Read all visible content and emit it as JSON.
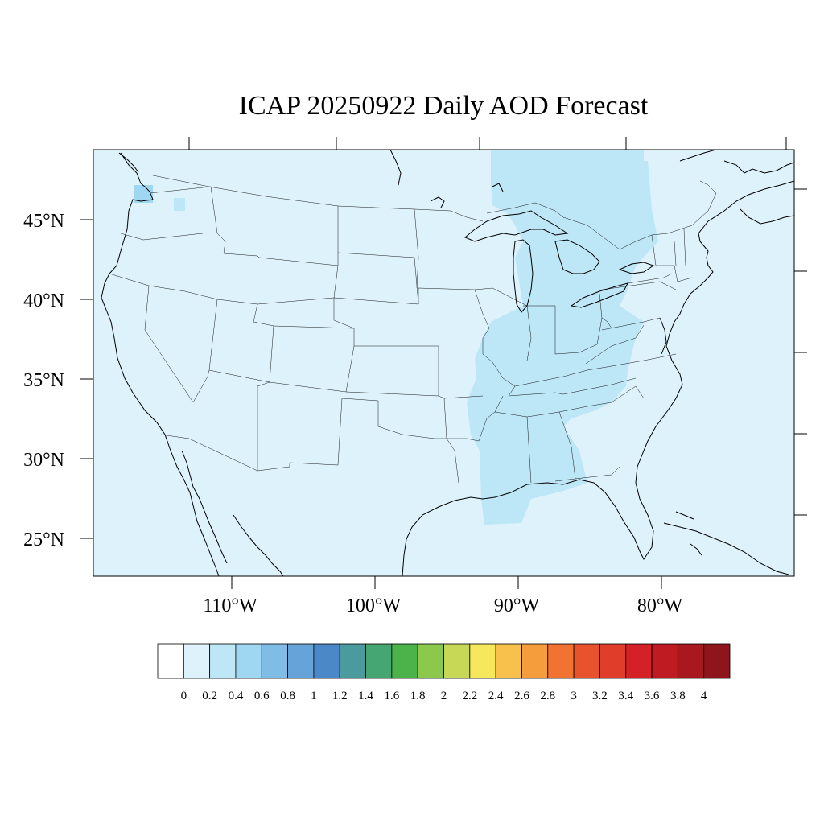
{
  "title": "ICAP 20250922 Daily AOD Forecast",
  "map": {
    "background_color": "#def2fb",
    "latitude_labels": [
      "45°N",
      "40°N",
      "35°N",
      "30°N",
      "25°N"
    ],
    "longitude_labels": [
      "110°W",
      "100°W",
      "90°W",
      "80°W"
    ]
  },
  "colorbar": {
    "labels": [
      "0",
      "0.2",
      "0.4",
      "0.6",
      "0.8",
      "1",
      "1.2",
      "1.4",
      "1.6",
      "1.8",
      "2",
      "2.2",
      "2.4",
      "2.6",
      "2.8",
      "3",
      "3.2",
      "3.4",
      "3.6",
      "3.8",
      "4"
    ],
    "colors": [
      "#ffffff",
      "#def2fb",
      "#bde6f7",
      "#9fd7f2",
      "#80bde6",
      "#66a3d9",
      "#4a88c8",
      "#4a9a9e",
      "#46a673",
      "#4bb34a",
      "#8bc84c",
      "#c6d855",
      "#f6e75c",
      "#f8c14b",
      "#f59c3c",
      "#f27231",
      "#e8532e",
      "#e03d2a",
      "#d42027",
      "#be1b23",
      "#a9171f",
      "#8e151b"
    ]
  }
}
